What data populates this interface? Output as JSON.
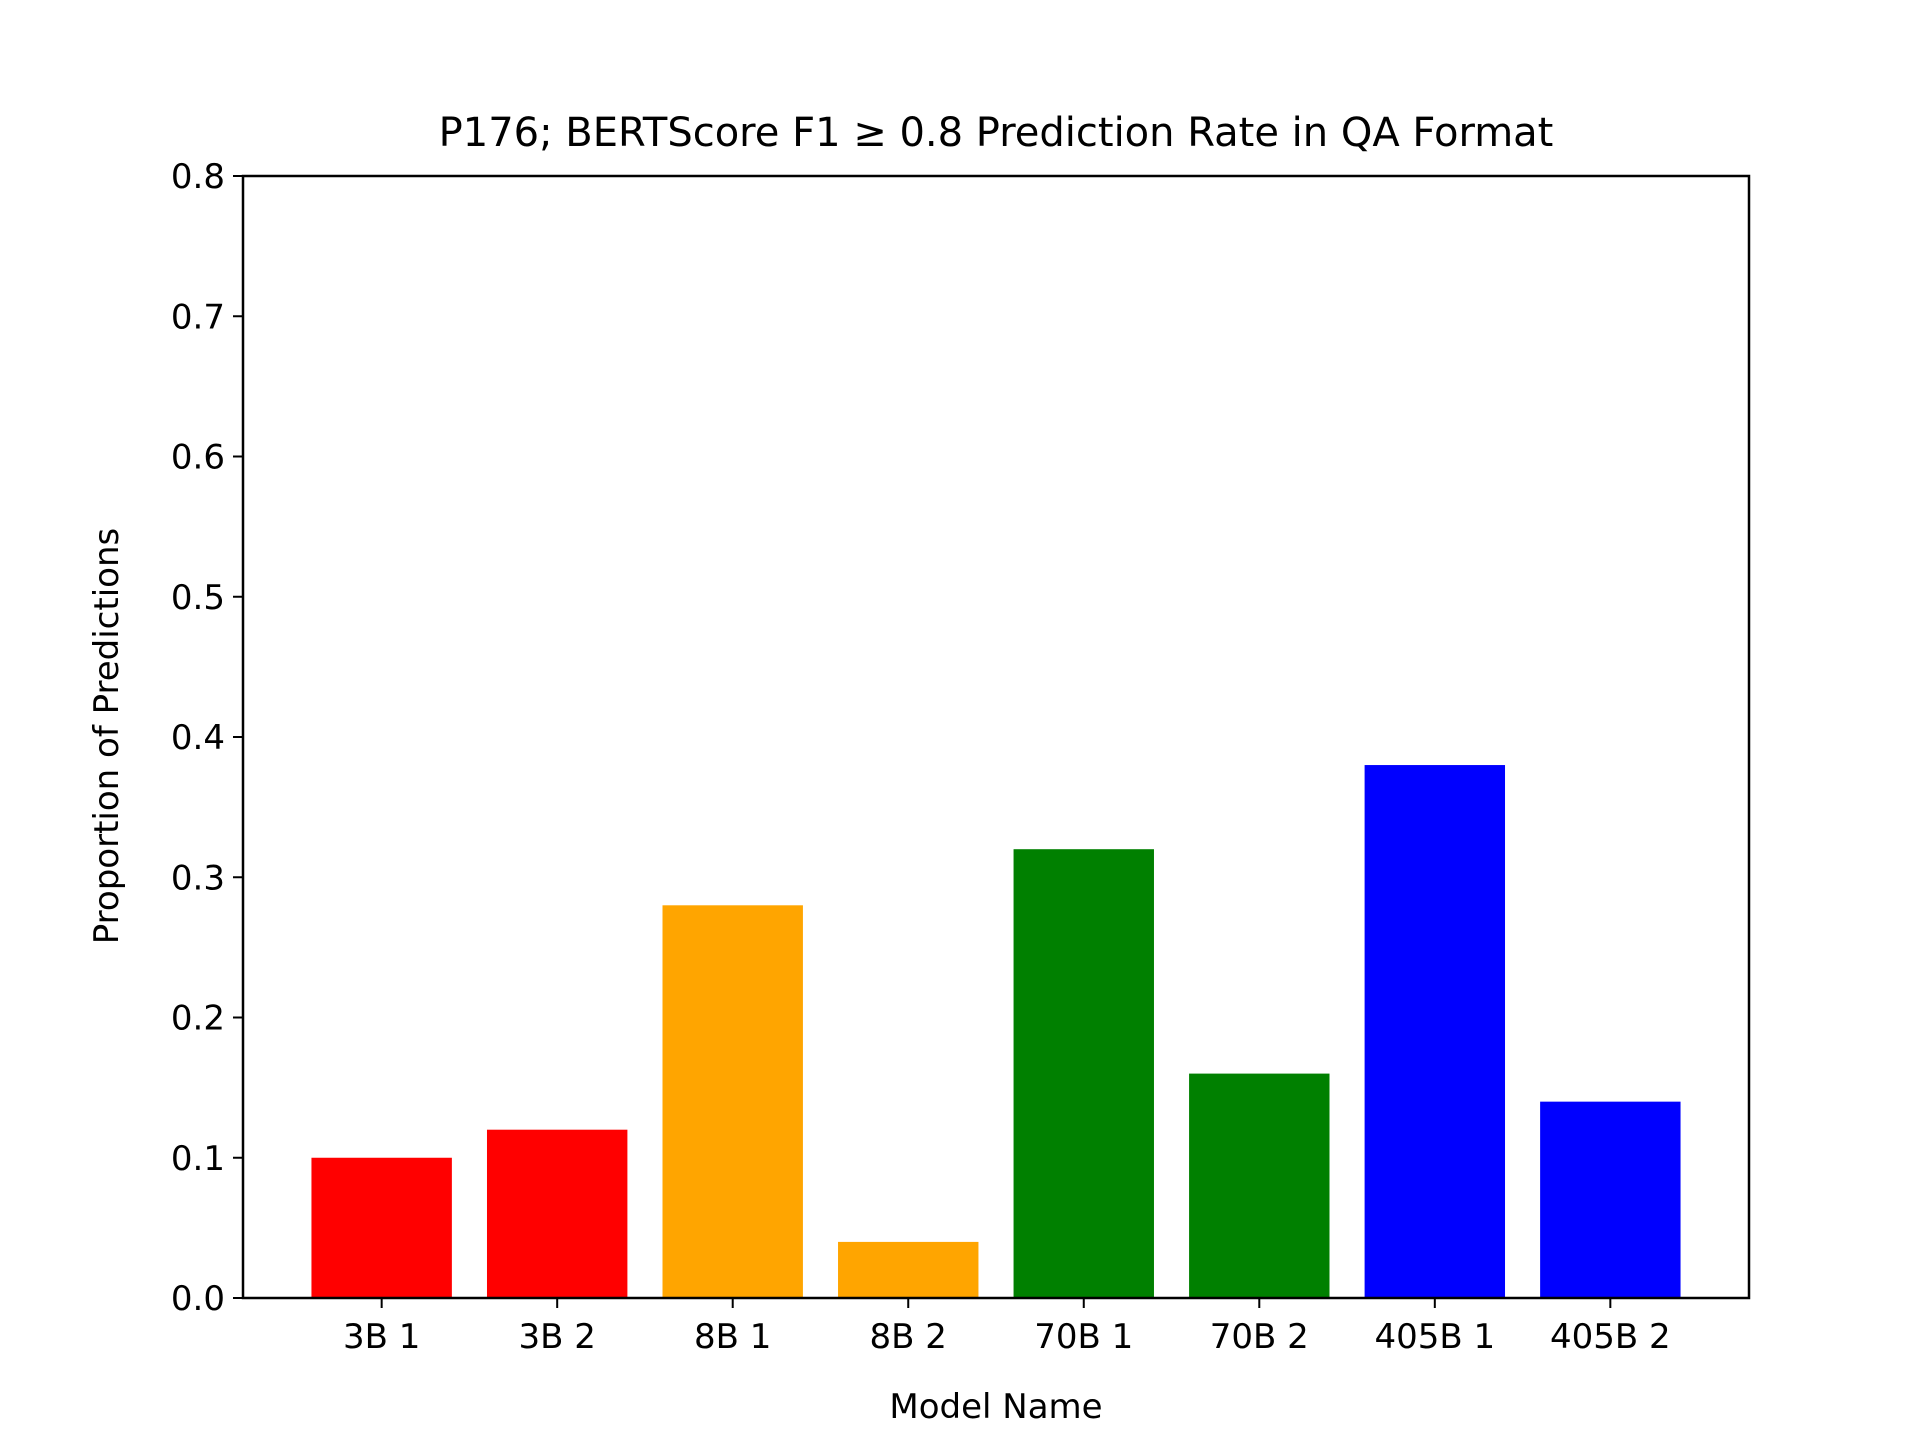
{
  "chart_data": {
    "type": "bar",
    "title": "P176; BERTScore F1 ≥ 0.8 Prediction Rate in QA Format",
    "xlabel": "Model Name",
    "ylabel": "Proportion of Predictions",
    "categories": [
      "3B 1",
      "3B 2",
      "8B 1",
      "8B 2",
      "70B 1",
      "70B 2",
      "405B 1",
      "405B 2"
    ],
    "values": [
      0.1,
      0.12,
      0.28,
      0.04,
      0.32,
      0.16,
      0.38,
      0.14
    ],
    "colors": [
      "#ff0000",
      "#ff0000",
      "#ffa500",
      "#ffa500",
      "#008000",
      "#008000",
      "#0000ff",
      "#0000ff"
    ],
    "ylim": [
      0,
      0.8
    ],
    "yticks": [
      "0.0",
      "0.1",
      "0.2",
      "0.3",
      "0.4",
      "0.5",
      "0.6",
      "0.7",
      "0.8"
    ],
    "grid": false,
    "legend": "none"
  }
}
